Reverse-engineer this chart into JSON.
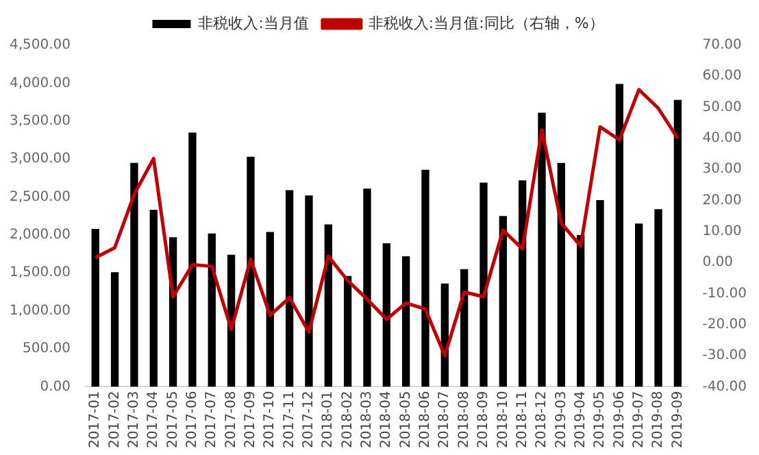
{
  "chart_data": {
    "type": "bar",
    "categories": [
      "2017-01",
      "2017-02",
      "2017-03",
      "2017-04",
      "2017-05",
      "2017-06",
      "2017-07",
      "2017-08",
      "2017-09",
      "2017-10",
      "2017-11",
      "2017-12",
      "2018-01",
      "2018-02",
      "2018-03",
      "2018-04",
      "2018-05",
      "2018-06",
      "2018-07",
      "2018-08",
      "2018-09",
      "2018-10",
      "2018-11",
      "2018-12",
      "2019-03",
      "2019-04",
      "2019-05",
      "2019-06",
      "2019-07",
      "2019-08",
      "2019-09"
    ],
    "series": [
      {
        "name": "非税收入:当月值",
        "color": "#000000",
        "values": [
          2080,
          1510,
          2950,
          2330,
          1970,
          3350,
          2020,
          1740,
          3030,
          2040,
          2590,
          2520,
          2140,
          1460,
          2610,
          1890,
          1720,
          2860,
          1360,
          1550,
          2690,
          2250,
          2720,
          3610,
          2950,
          2000,
          2460,
          3990,
          2150,
          2340,
          3780
        ]
      },
      {
        "name": "非税收入:当月值:同比（右轴，%）",
        "type": "line",
        "axis": "y2",
        "color": "#c00000",
        "values": [
          1.6,
          4.8,
          22,
          33.5,
          -11,
          -0.7,
          -1.2,
          -21.5,
          1.1,
          -17,
          -11.3,
          -22.4,
          2,
          -5.8,
          -11.8,
          -18.3,
          -13,
          -15,
          -30,
          -9.5,
          -11,
          10.4,
          4.4,
          42.7,
          12.7,
          5.3,
          43.7,
          39.5,
          55.7,
          49.7,
          40
        ]
      }
    ],
    "ylim": [
      0,
      4500
    ],
    "yticks": [
      {
        "value": 0,
        "label": "0.00"
      },
      {
        "value": 500,
        "label": "500.00"
      },
      {
        "value": 1000,
        "label": "1,000.00"
      },
      {
        "value": 1500,
        "label": "1,500.00"
      },
      {
        "value": 2000,
        "label": "2,000.00"
      },
      {
        "value": 2500,
        "label": "2,500.00"
      },
      {
        "value": 3000,
        "label": "3,000.00"
      },
      {
        "value": 3500,
        "label": "3,500.00"
      },
      {
        "value": 4000,
        "label": "4,000.00"
      },
      {
        "value": 4500,
        "label": "4,500.00"
      }
    ],
    "y2lim": [
      -40,
      70
    ],
    "y2ticks": [
      {
        "value": -40,
        "label": "-40.00"
      },
      {
        "value": -30,
        "label": "-30.00"
      },
      {
        "value": -20,
        "label": "-20.00"
      },
      {
        "value": -10,
        "label": "-10.00"
      },
      {
        "value": 0,
        "label": "0.00"
      },
      {
        "value": 10,
        "label": "10.00"
      },
      {
        "value": 20,
        "label": "20.00"
      },
      {
        "value": 30,
        "label": "30.00"
      },
      {
        "value": 40,
        "label": "40.00"
      },
      {
        "value": 50,
        "label": "50.00"
      },
      {
        "value": 60,
        "label": "60.00"
      },
      {
        "value": 70,
        "label": "70.00"
      }
    ],
    "grid": false,
    "legend": "top",
    "marker": "none",
    "line_style": "solid"
  }
}
